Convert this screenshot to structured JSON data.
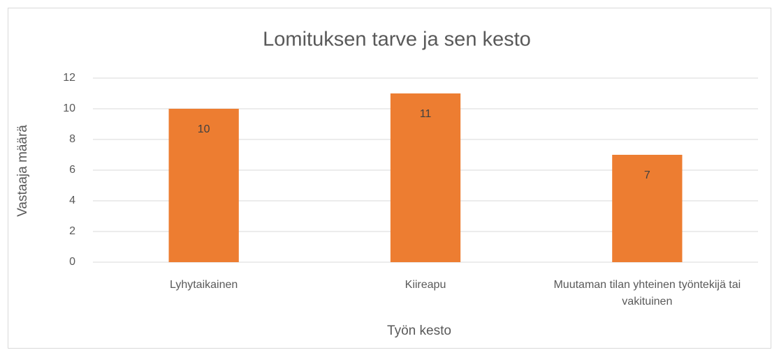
{
  "chart_data": {
    "type": "bar",
    "title": "Lomituksen tarve ja sen kesto",
    "x_label": "Työn kesto",
    "y_label": "Vastaaja määrä",
    "categories": [
      "Lyhytaikainen",
      "Kiireapu",
      "Muutaman tilan yhteinen työntekijä tai vakituinen"
    ],
    "values": [
      10,
      11,
      7
    ],
    "color": "#ed7d31",
    "ylim": [
      0,
      12
    ],
    "yticks": [
      0,
      2,
      4,
      6,
      8,
      10,
      12
    ],
    "grid": true
  }
}
